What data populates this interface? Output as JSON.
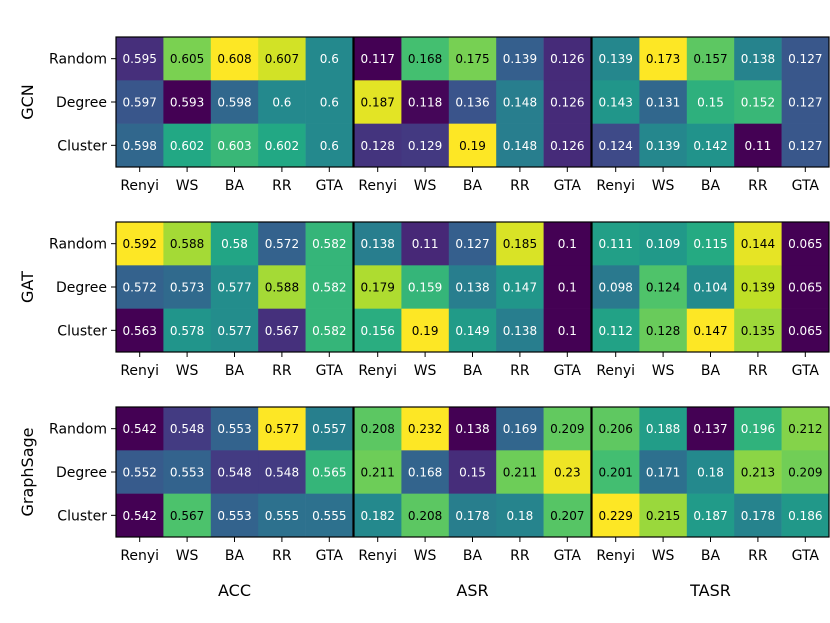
{
  "chart_data": {
    "type": "heatmap",
    "colormap": "viridis",
    "row_groups": [
      "GCN",
      "GAT",
      "GraphSage"
    ],
    "column_groups": [
      "ACC",
      "ASR",
      "TASR"
    ],
    "rows": [
      "Random",
      "Degree",
      "Cluster"
    ],
    "columns": [
      "Renyi",
      "WS",
      "BA",
      "RR",
      "GTA"
    ],
    "panels": [
      {
        "model": "GCN",
        "metric": "ACC",
        "values": [
          [
            "0.595",
            "0.605",
            "0.608",
            "0.607",
            "0.6"
          ],
          [
            "0.597",
            "0.593",
            "0.598",
            "0.6",
            "0.6"
          ],
          [
            "0.598",
            "0.602",
            "0.603",
            "0.602",
            "0.6"
          ]
        ]
      },
      {
        "model": "GCN",
        "metric": "ASR",
        "values": [
          [
            "0.117",
            "0.168",
            "0.175",
            "0.139",
            "0.126"
          ],
          [
            "0.187",
            "0.118",
            "0.136",
            "0.148",
            "0.126"
          ],
          [
            "0.128",
            "0.129",
            "0.19",
            "0.148",
            "0.126"
          ]
        ]
      },
      {
        "model": "GCN",
        "metric": "TASR",
        "values": [
          [
            "0.139",
            "0.173",
            "0.157",
            "0.138",
            "0.127"
          ],
          [
            "0.143",
            "0.131",
            "0.15",
            "0.152",
            "0.127"
          ],
          [
            "0.124",
            "0.139",
            "0.142",
            "0.11",
            "0.127"
          ]
        ]
      },
      {
        "model": "GAT",
        "metric": "ACC",
        "values": [
          [
            "0.592",
            "0.588",
            "0.58",
            "0.572",
            "0.582"
          ],
          [
            "0.572",
            "0.573",
            "0.577",
            "0.588",
            "0.582"
          ],
          [
            "0.563",
            "0.578",
            "0.577",
            "0.567",
            "0.582"
          ]
        ]
      },
      {
        "model": "GAT",
        "metric": "ASR",
        "values": [
          [
            "0.138",
            "0.11",
            "0.127",
            "0.185",
            "0.1"
          ],
          [
            "0.179",
            "0.159",
            "0.138",
            "0.147",
            "0.1"
          ],
          [
            "0.156",
            "0.19",
            "0.149",
            "0.138",
            "0.1"
          ]
        ]
      },
      {
        "model": "GAT",
        "metric": "TASR",
        "values": [
          [
            "0.111",
            "0.109",
            "0.115",
            "0.144",
            "0.065"
          ],
          [
            "0.098",
            "0.124",
            "0.104",
            "0.139",
            "0.065"
          ],
          [
            "0.112",
            "0.128",
            "0.147",
            "0.135",
            "0.065"
          ]
        ]
      },
      {
        "model": "GraphSage",
        "metric": "ACC",
        "values": [
          [
            "0.542",
            "0.548",
            "0.553",
            "0.577",
            "0.557"
          ],
          [
            "0.552",
            "0.553",
            "0.548",
            "0.548",
            "0.565"
          ],
          [
            "0.542",
            "0.567",
            "0.553",
            "0.555",
            "0.555"
          ]
        ]
      },
      {
        "model": "GraphSage",
        "metric": "ASR",
        "values": [
          [
            "0.208",
            "0.232",
            "0.138",
            "0.169",
            "0.209"
          ],
          [
            "0.211",
            "0.168",
            "0.15",
            "0.211",
            "0.23"
          ],
          [
            "0.182",
            "0.208",
            "0.178",
            "0.18",
            "0.207"
          ]
        ]
      },
      {
        "model": "GraphSage",
        "metric": "TASR",
        "values": [
          [
            "0.206",
            "0.188",
            "0.137",
            "0.196",
            "0.212"
          ],
          [
            "0.201",
            "0.171",
            "0.18",
            "0.213",
            "0.209"
          ],
          [
            "0.229",
            "0.215",
            "0.187",
            "0.178",
            "0.186"
          ]
        ]
      }
    ]
  }
}
